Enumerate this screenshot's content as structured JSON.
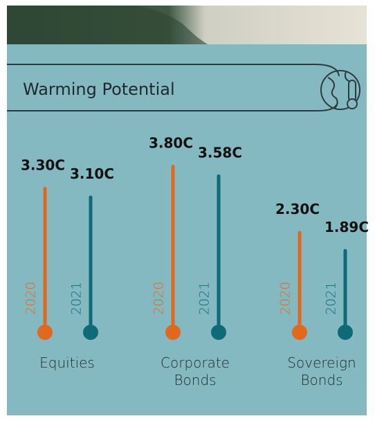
{
  "chart_data": {
    "type": "bar",
    "title": "Warming Potential",
    "categories": [
      "Equities",
      "Corporate Bonds",
      "Sovereign Bonds"
    ],
    "series": [
      {
        "name": "2020",
        "color": "#e2681e",
        "values": [
          3.3,
          3.8,
          2.3
        ],
        "value_labels": [
          "3.30C",
          "3.80C",
          "2.30C"
        ]
      },
      {
        "name": "2021",
        "color": "#0e6a76",
        "values": [
          3.1,
          3.58,
          1.89
        ],
        "value_labels": [
          "3.10C",
          "3.58C",
          "1.89C"
        ]
      }
    ]
  }
}
